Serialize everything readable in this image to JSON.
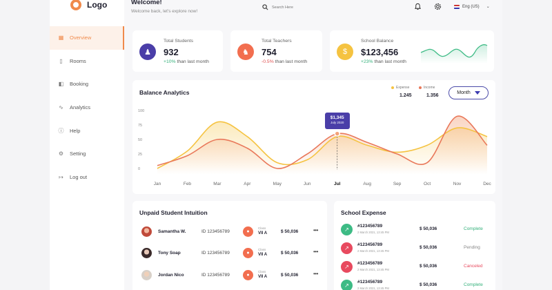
{
  "brand": {
    "logo_text": "Logo"
  },
  "header": {
    "title": "Welcome!",
    "subtitle": "Welcome back, let's explore now!",
    "search_placeholder": "Search Here",
    "language": "Eng (US)"
  },
  "sidebar": {
    "items": [
      {
        "label": "Overview",
        "icon": "grid-icon"
      },
      {
        "label": "Rooms",
        "icon": "door-icon"
      },
      {
        "label": "Booking",
        "icon": "book-icon"
      },
      {
        "label": "Analytics",
        "icon": "chart-icon"
      },
      {
        "label": "Help",
        "icon": "help-icon"
      },
      {
        "label": "Setting",
        "icon": "gear-icon"
      },
      {
        "label": "Log out",
        "icon": "logout-icon"
      }
    ]
  },
  "stats": [
    {
      "label": "Total Students",
      "value": "932",
      "change": "+10%",
      "change_suffix": " than last month",
      "color": "#5548b8"
    },
    {
      "label": "Total Teachers",
      "value": "754",
      "change": "-0.5%",
      "change_suffix": " than last month",
      "color": "#f26e4f"
    },
    {
      "label": "School Balance",
      "value": "$123,456",
      "change": "+23%",
      "change_suffix": " than last month",
      "color": "#f5c341"
    }
  ],
  "analytics": {
    "title": "Balance Analytics",
    "legend_expense_label": "Expense",
    "legend_expense_value": "1.245",
    "legend_income_label": "Income",
    "legend_income_value": "1.356",
    "period_button": "Month",
    "tooltip_value": "$1,345",
    "tooltip_date": "July 2020"
  },
  "chart_data": {
    "type": "area",
    "categories": [
      "Jan",
      "Feb",
      "Mar",
      "Apr",
      "May",
      "Jun",
      "Jul",
      "Aug",
      "Sep",
      "Oct",
      "Nov",
      "Dec"
    ],
    "highlight_category": "Jul",
    "y_ticks": [
      0,
      25,
      50,
      75,
      100
    ],
    "ylim": [
      0,
      100
    ],
    "series": [
      {
        "name": "Expense",
        "color": "#f5c341",
        "values": [
          0,
          30,
          80,
          55,
          10,
          15,
          55,
          40,
          28,
          40,
          70,
          55
        ]
      },
      {
        "name": "Income",
        "color": "#e9785a",
        "values": [
          5,
          22,
          50,
          35,
          0,
          25,
          60,
          45,
          25,
          10,
          90,
          40
        ]
      }
    ]
  },
  "unpaid": {
    "title": "Unpaid Student Intuition",
    "class_label": "Class",
    "rows": [
      {
        "name": "Samantha W.",
        "id": "ID 123456789",
        "class": "VII A",
        "amount": "$ 50,036"
      },
      {
        "name": "Tony Soap",
        "id": "ID 123456789",
        "class": "VII A",
        "amount": "$ 50,036"
      },
      {
        "name": "Jordan Nico",
        "id": "ID 123456789",
        "class": "VII A",
        "amount": "$ 50,036"
      }
    ]
  },
  "expense": {
    "title": "School Expense",
    "rows": [
      {
        "id": "#123456789",
        "date": "2 March 2021, 13:45 PM",
        "amount": "$ 50,036",
        "status": "Complete",
        "status_color": "#33b07a",
        "icon_color": "#3dbb85"
      },
      {
        "id": "#123456789",
        "date": "2 March 2021, 13:45 PM",
        "amount": "$ 50,036",
        "status": "Pending",
        "status_color": "#888888",
        "icon_color": "#e84a5f"
      },
      {
        "id": "#123456789",
        "date": "2 March 2021, 13:45 PM",
        "amount": "$ 50,036",
        "status": "Canceled",
        "status_color": "#e84a5f",
        "icon_color": "#e84a5f"
      },
      {
        "id": "#123456789",
        "date": "2 March 2021, 13:45 PM",
        "amount": "$ 50,036",
        "status": "Complete",
        "status_color": "#33b07a",
        "icon_color": "#3dbb85"
      }
    ]
  }
}
